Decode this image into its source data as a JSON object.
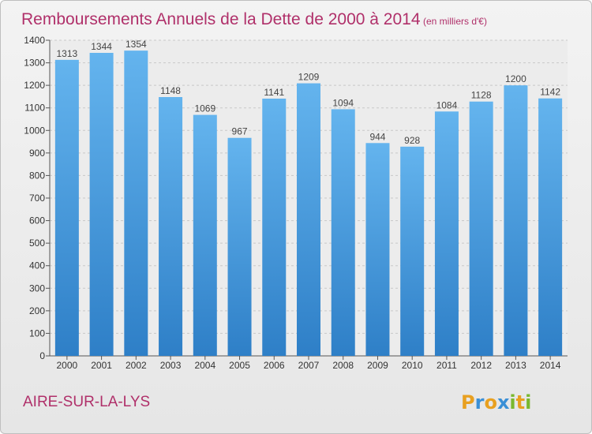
{
  "chart_data": {
    "type": "bar",
    "title": "Remboursements Annuels de la Dette de 2000 à 2014",
    "unit": "(en milliers d'€)",
    "xlabel": "",
    "ylabel": "",
    "categories": [
      "2000",
      "2001",
      "2002",
      "2003",
      "2004",
      "2005",
      "2006",
      "2007",
      "2008",
      "2009",
      "2010",
      "2011",
      "2012",
      "2013",
      "2014"
    ],
    "values": [
      1313,
      1344,
      1354,
      1148,
      1069,
      967,
      1141,
      1209,
      1094,
      944,
      928,
      1084,
      1128,
      1200,
      1142
    ],
    "ylim": [
      0,
      1400
    ],
    "yticks": [
      0,
      100,
      200,
      300,
      400,
      500,
      600,
      700,
      800,
      900,
      1000,
      1100,
      1200,
      1300,
      1400
    ],
    "grid": true,
    "bar_color": "#3a8fd6",
    "title_color": "#b0306a"
  },
  "city": "AIRE-SUR-LA-LYS",
  "logo": {
    "letters": [
      "P",
      "r",
      "o",
      "x",
      "i",
      "t",
      "i"
    ],
    "colors": [
      "#e8a020",
      "#3a8fd6",
      "#e8a020",
      "#3a8fd6",
      "#7ab82e",
      "#e8a020",
      "#7ab82e"
    ]
  }
}
